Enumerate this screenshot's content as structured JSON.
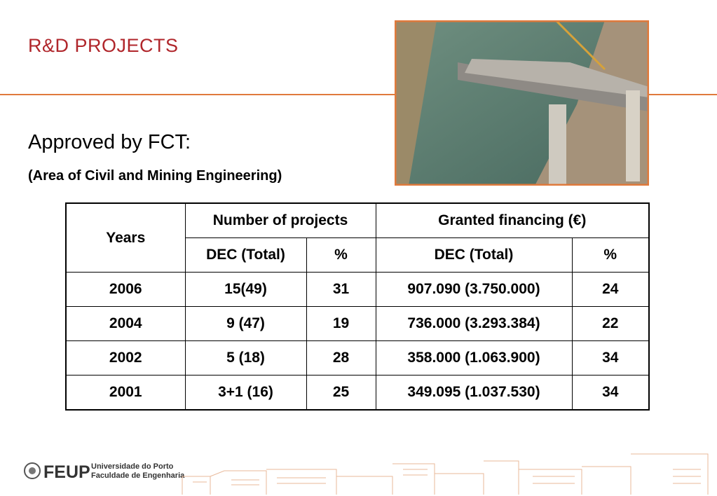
{
  "header": {
    "title": "R&D PROJECTS"
  },
  "subtitle": "Approved by FCT:",
  "note": "(Area of Civil and Mining Engineering)",
  "table": {
    "headers": {
      "years": "Years",
      "group1": "Number of projects",
      "group2": "Granted financing (€)",
      "sub": [
        "DEC (Total)",
        "%",
        "DEC (Total)",
        "%"
      ]
    },
    "rows": [
      [
        "2006",
        "15(49)",
        "31",
        "907.090 (3.750.000)",
        "24"
      ],
      [
        "2004",
        "9 (47)",
        "19",
        "736.000 (3.293.384)",
        "22"
      ],
      [
        "2002",
        "5 (18)",
        "28",
        "358.000 (1.063.900)",
        "34"
      ],
      [
        "2001",
        "3+1 (16)",
        "25",
        "349.095 (1.037.530)",
        "34"
      ]
    ]
  },
  "footer": {
    "logo": "FEUP",
    "line1": "Universidade do Porto",
    "line2": "Faculdade de Engenharia"
  }
}
